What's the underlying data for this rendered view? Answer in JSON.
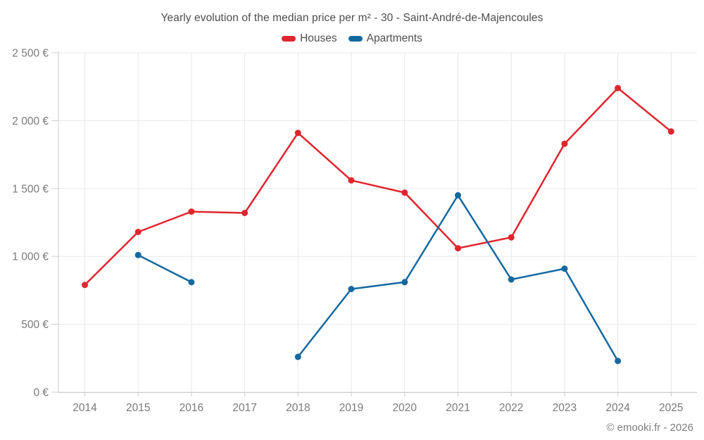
{
  "chart_data": {
    "type": "line",
    "title": "Yearly evolution of the median price per m² - 30 - Saint-André-de-Majencoules",
    "categories": [
      "2014",
      "2015",
      "2016",
      "2017",
      "2018",
      "2019",
      "2020",
      "2021",
      "2022",
      "2023",
      "2024",
      "2025"
    ],
    "series": [
      {
        "name": "Houses",
        "color": "#e0252e",
        "values": [
          790,
          1180,
          1330,
          1320,
          1910,
          1560,
          1470,
          1060,
          1140,
          1830,
          2240,
          1920
        ]
      },
      {
        "name": "Apartments",
        "color": "#15699f",
        "values": [
          null,
          1010,
          810,
          null,
          260,
          760,
          810,
          1450,
          830,
          910,
          230,
          null
        ]
      }
    ],
    "xlabel": "",
    "ylabel": "",
    "ylim": [
      0,
      2500
    ],
    "ytick_labels": [
      "0 €",
      "500 €",
      "1 000 €",
      "1 500 €",
      "2 000 €",
      "2 500 €"
    ],
    "grid": true,
    "legend_position": "top-center"
  },
  "footer": {
    "copyright": "© emooki.fr - 2026"
  },
  "style": {
    "grid_color": "#e8e8e8",
    "axis_color": "#cccccc",
    "background": "#ffffff"
  }
}
